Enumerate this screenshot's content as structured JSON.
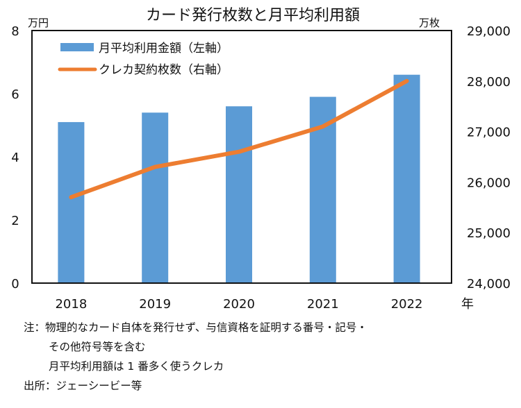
{
  "chart_data": {
    "type": "bar+line",
    "title": "カード発行枚数と月平均利用額",
    "categories": [
      "2018",
      "2019",
      "2020",
      "2021",
      "2022"
    ],
    "xlabel": "年",
    "left_axis": {
      "unit": "万円",
      "ylim": [
        0,
        8
      ],
      "ticks": [
        "0",
        "2",
        "4",
        "6",
        "8"
      ],
      "tick_values": [
        0,
        2,
        4,
        6,
        8
      ]
    },
    "right_axis": {
      "unit": "万枚",
      "ylim": [
        24000,
        29000
      ],
      "ticks": [
        "24,000",
        "25,000",
        "26,000",
        "27,000",
        "28,000",
        "29,000"
      ],
      "tick_values": [
        24000,
        25000,
        26000,
        27000,
        28000,
        29000
      ]
    },
    "series": [
      {
        "name": "月平均利用金額（左軸）",
        "type": "bar",
        "axis": "left",
        "color": "#5b9bd5",
        "values": [
          5.1,
          5.4,
          5.6,
          5.9,
          6.6
        ]
      },
      {
        "name": "クレカ契約枚数（右軸）",
        "type": "line",
        "axis": "right",
        "color": "#ed7d31",
        "values": [
          25700,
          26300,
          26600,
          27100,
          28000
        ]
      }
    ],
    "legend": "top-left",
    "grid": false
  },
  "notes": {
    "line1": "注：物理的なカード自体を発行せず、与信資格を証明する番号・記号・",
    "line2": "その他符号等を含む",
    "line3": "月平均利用額は 1 番多く使うクレカ",
    "source": "出所：ジェーシービー等"
  }
}
